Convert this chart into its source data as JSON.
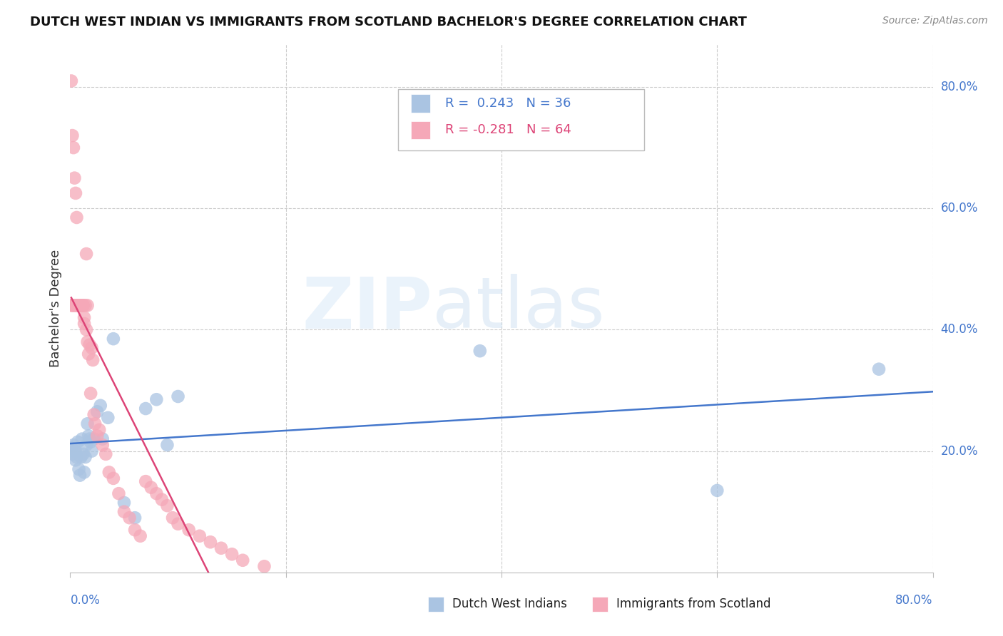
{
  "title": "DUTCH WEST INDIAN VS IMMIGRANTS FROM SCOTLAND BACHELOR'S DEGREE CORRELATION CHART",
  "source": "Source: ZipAtlas.com",
  "ylabel": "Bachelor's Degree",
  "legend1_r": "0.243",
  "legend1_n": "36",
  "legend2_r": "-0.281",
  "legend2_n": "64",
  "blue_color": "#aac4e2",
  "pink_color": "#f5a8b8",
  "blue_line_color": "#4477cc",
  "pink_line_color": "#dd4477",
  "xlim": [
    0.0,
    0.8
  ],
  "ylim": [
    0.0,
    0.87
  ],
  "blue_scatter_x": [
    0.001,
    0.002,
    0.003,
    0.004,
    0.005,
    0.005,
    0.006,
    0.007,
    0.008,
    0.009,
    0.01,
    0.011,
    0.012,
    0.013,
    0.014,
    0.015,
    0.016,
    0.017,
    0.018,
    0.019,
    0.02,
    0.022,
    0.025,
    0.028,
    0.03,
    0.035,
    0.04,
    0.05,
    0.06,
    0.07,
    0.08,
    0.09,
    0.1,
    0.38,
    0.6,
    0.75
  ],
  "blue_scatter_y": [
    0.205,
    0.195,
    0.21,
    0.2,
    0.185,
    0.2,
    0.19,
    0.215,
    0.17,
    0.16,
    0.19,
    0.22,
    0.195,
    0.165,
    0.19,
    0.21,
    0.245,
    0.225,
    0.22,
    0.215,
    0.2,
    0.22,
    0.265,
    0.275,
    0.22,
    0.255,
    0.385,
    0.115,
    0.09,
    0.27,
    0.285,
    0.21,
    0.29,
    0.365,
    0.135,
    0.335
  ],
  "pink_scatter_x": [
    0.001,
    0.001,
    0.002,
    0.002,
    0.003,
    0.003,
    0.004,
    0.004,
    0.005,
    0.005,
    0.006,
    0.006,
    0.007,
    0.007,
    0.008,
    0.008,
    0.008,
    0.009,
    0.009,
    0.01,
    0.01,
    0.011,
    0.011,
    0.012,
    0.012,
    0.013,
    0.013,
    0.014,
    0.015,
    0.015,
    0.016,
    0.016,
    0.017,
    0.018,
    0.019,
    0.02,
    0.021,
    0.022,
    0.023,
    0.025,
    0.027,
    0.03,
    0.033,
    0.036,
    0.04,
    0.045,
    0.05,
    0.055,
    0.06,
    0.065,
    0.07,
    0.075,
    0.08,
    0.085,
    0.09,
    0.095,
    0.1,
    0.11,
    0.12,
    0.13,
    0.14,
    0.15,
    0.16,
    0.18
  ],
  "pink_scatter_y": [
    0.81,
    0.44,
    0.72,
    0.44,
    0.7,
    0.44,
    0.65,
    0.44,
    0.625,
    0.44,
    0.585,
    0.44,
    0.44,
    0.44,
    0.44,
    0.44,
    0.44,
    0.44,
    0.44,
    0.44,
    0.44,
    0.44,
    0.44,
    0.44,
    0.44,
    0.42,
    0.41,
    0.44,
    0.525,
    0.4,
    0.38,
    0.44,
    0.36,
    0.375,
    0.295,
    0.37,
    0.35,
    0.26,
    0.245,
    0.225,
    0.235,
    0.21,
    0.195,
    0.165,
    0.155,
    0.13,
    0.1,
    0.09,
    0.07,
    0.06,
    0.15,
    0.14,
    0.13,
    0.12,
    0.11,
    0.09,
    0.08,
    0.07,
    0.06,
    0.05,
    0.04,
    0.03,
    0.02,
    0.01
  ],
  "pink_line_x_start": 0.001,
  "pink_line_x_solid_end": 0.185,
  "pink_line_x_dash_end": 0.25,
  "blue_line_x_start": 0.0,
  "blue_line_x_end": 0.8
}
